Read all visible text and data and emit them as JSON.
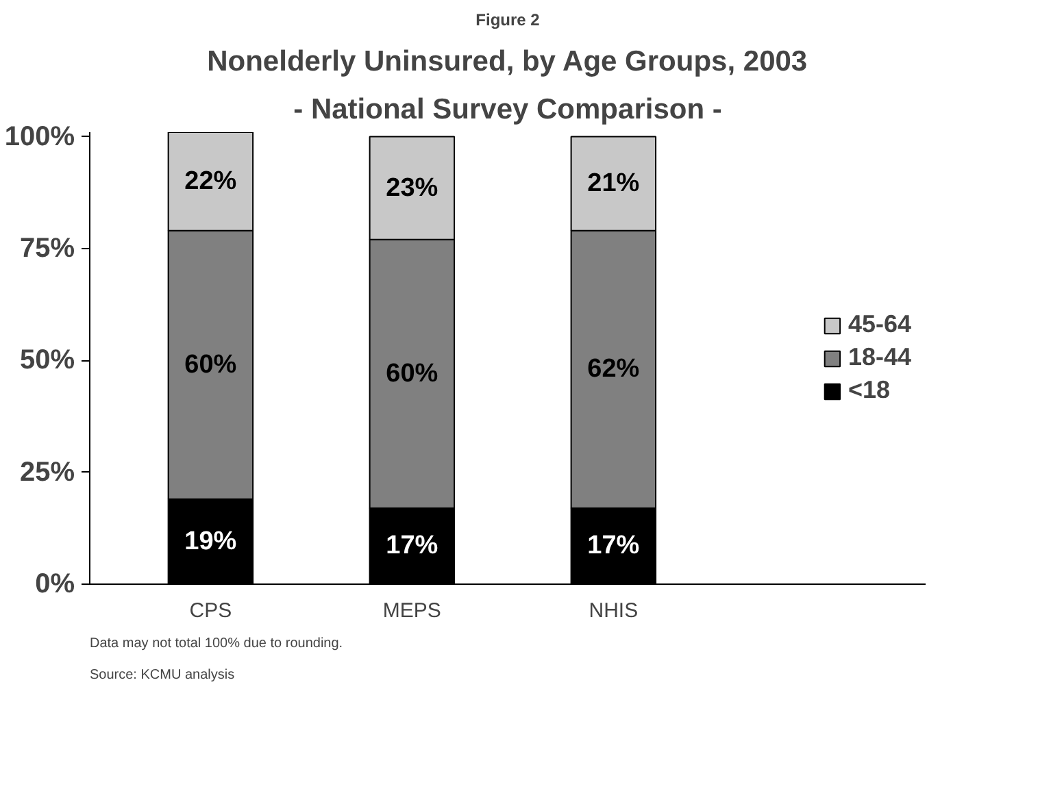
{
  "chart_data": {
    "type": "bar",
    "stacked": true,
    "title": "Nonelderly Uninsured, by Age Groups, 2003",
    "subtitle": "- National Survey Comparison -",
    "annotations": [
      "Figure 2",
      "Data may not total 100% due to rounding.",
      "Source: KCMU analysis"
    ],
    "categories": [
      "CPS",
      "MEPS",
      "NHIS"
    ],
    "series": [
      {
        "name": "<18",
        "color": "#000000",
        "values": [
          19,
          17,
          17
        ],
        "value_labels": [
          "19%",
          "17%",
          "17%"
        ]
      },
      {
        "name": "18-44",
        "color": "#808080",
        "values": [
          60,
          60,
          62
        ],
        "value_labels": [
          "60%",
          "60%",
          "62%"
        ]
      },
      {
        "name": "45-64",
        "color": "#c8c8c8",
        "values": [
          22,
          23,
          21
        ],
        "value_labels": [
          "22%",
          "23%",
          "21%"
        ]
      }
    ],
    "ylim": [
      0,
      101
    ],
    "yticks": [
      {
        "value": 0,
        "label": "0%"
      },
      {
        "value": 25,
        "label": "25%"
      },
      {
        "value": 50,
        "label": "50%"
      },
      {
        "value": 75,
        "label": "75%"
      },
      {
        "value": 100,
        "label": "100%"
      }
    ],
    "grid": false,
    "legend": "right"
  }
}
